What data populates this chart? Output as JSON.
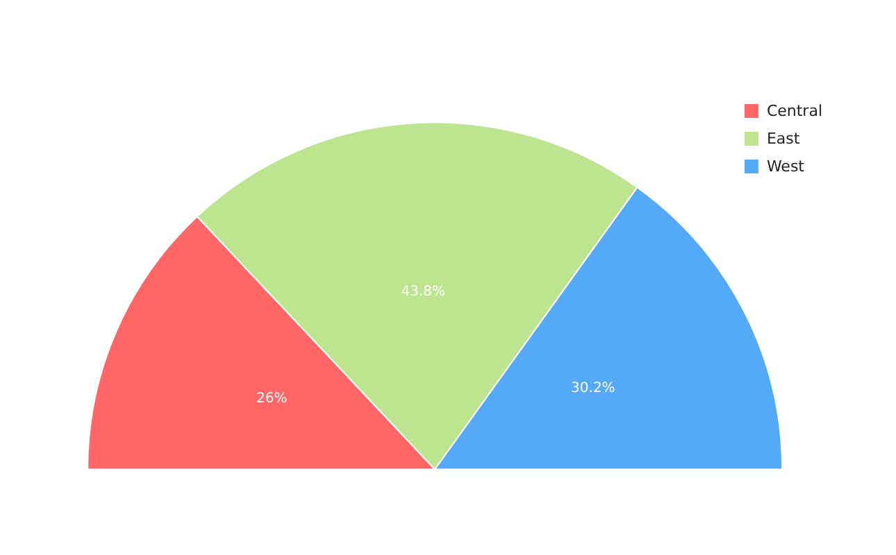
{
  "chart_data": {
    "type": "pie",
    "categories": [
      "Central",
      "East",
      "West"
    ],
    "values": [
      26,
      43.8,
      30.2
    ],
    "value_labels": [
      "26%",
      "43.8%",
      "30.2%"
    ],
    "colors": [
      "#ff6666",
      "#bde48f",
      "#55aaf8"
    ],
    "legend": "top right"
  }
}
